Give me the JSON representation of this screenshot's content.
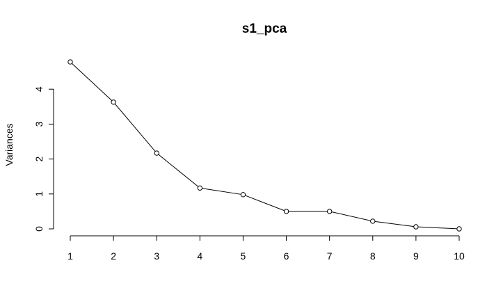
{
  "chart_data": {
    "type": "line",
    "title": "s1_pca",
    "xlabel": "",
    "ylabel": "Variances",
    "x": [
      1,
      2,
      3,
      4,
      5,
      6,
      7,
      8,
      9,
      10
    ],
    "values": [
      4.78,
      3.63,
      2.17,
      1.17,
      0.98,
      0.5,
      0.5,
      0.22,
      0.06,
      0.0
    ],
    "x_ticks": [
      "1",
      "2",
      "3",
      "4",
      "5",
      "6",
      "7",
      "8",
      "9",
      "10"
    ],
    "y_ticks": [
      "0",
      "1",
      "2",
      "3",
      "4"
    ],
    "ylim": [
      0,
      4.78
    ],
    "xlim": [
      1,
      10
    ],
    "grid": false,
    "legend": "none",
    "marker": "open-circle",
    "color": "#000000"
  }
}
